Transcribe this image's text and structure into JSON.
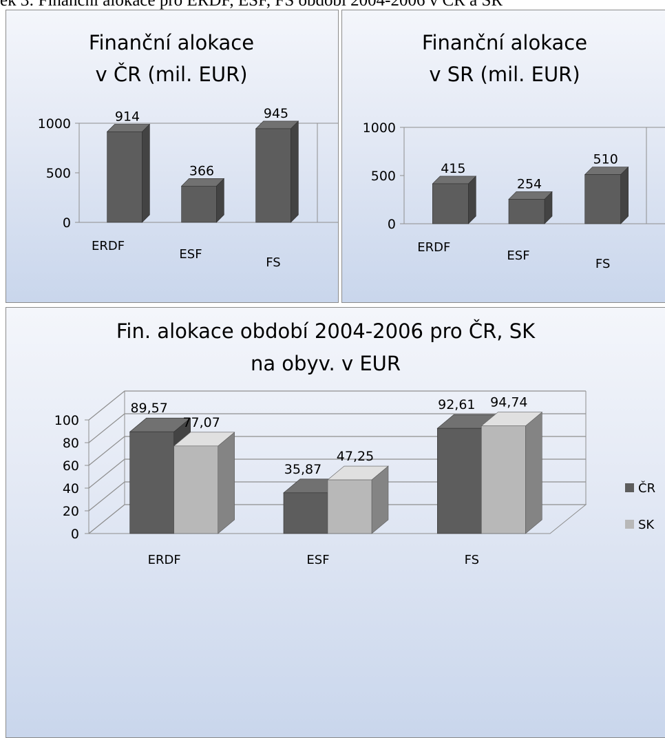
{
  "caption": "ek 3: Finanční alokace pro ERDF, ESF, FS období 2004-2006 v ČR a SR",
  "chart_data": [
    {
      "type": "bar",
      "title_lines": [
        "Finanční alokace",
        "v ČR (mil. EUR)"
      ],
      "categories": [
        "ERDF",
        "ESF",
        "FS"
      ],
      "values": [
        914,
        366,
        945
      ],
      "data_labels": [
        "914",
        "366",
        "945"
      ],
      "yticks": [
        "0",
        "500",
        "1000"
      ],
      "ylim": [
        0,
        1000
      ],
      "colors": {
        "bar": "#5d5d5d"
      },
      "grid": false,
      "legend": "none"
    },
    {
      "type": "bar",
      "title_lines": [
        "Finanční alokace",
        "v SR (mil. EUR)"
      ],
      "categories": [
        "ERDF",
        "ESF",
        "FS"
      ],
      "values": [
        415,
        254,
        510
      ],
      "data_labels": [
        "415",
        "254",
        "510"
      ],
      "yticks": [
        "0",
        "500",
        "1000"
      ],
      "ylim": [
        0,
        1000
      ],
      "colors": {
        "bar": "#5d5d5d"
      },
      "grid": false,
      "legend": "none"
    },
    {
      "type": "bar",
      "title_lines": [
        "Fin. alokace období 2004-2006 pro ČR, SK",
        "na obyv. v  EUR"
      ],
      "categories": [
        "ERDF",
        "ESF",
        "FS"
      ],
      "series": [
        {
          "name": "ČR",
          "values": [
            89.57,
            35.87,
            92.61
          ],
          "labels": [
            "89,57",
            "35,87",
            "92,61"
          ],
          "color": "#5d5d5d"
        },
        {
          "name": "SK",
          "values": [
            77.07,
            47.25,
            94.74
          ],
          "labels": [
            "77,07",
            "47,25",
            "94,74"
          ],
          "color": "#b8b8b8"
        }
      ],
      "yticks": [
        "0",
        "20",
        "40",
        "60",
        "80",
        "100"
      ],
      "ylim": [
        0,
        100
      ],
      "grid": true,
      "legend": "right"
    }
  ]
}
